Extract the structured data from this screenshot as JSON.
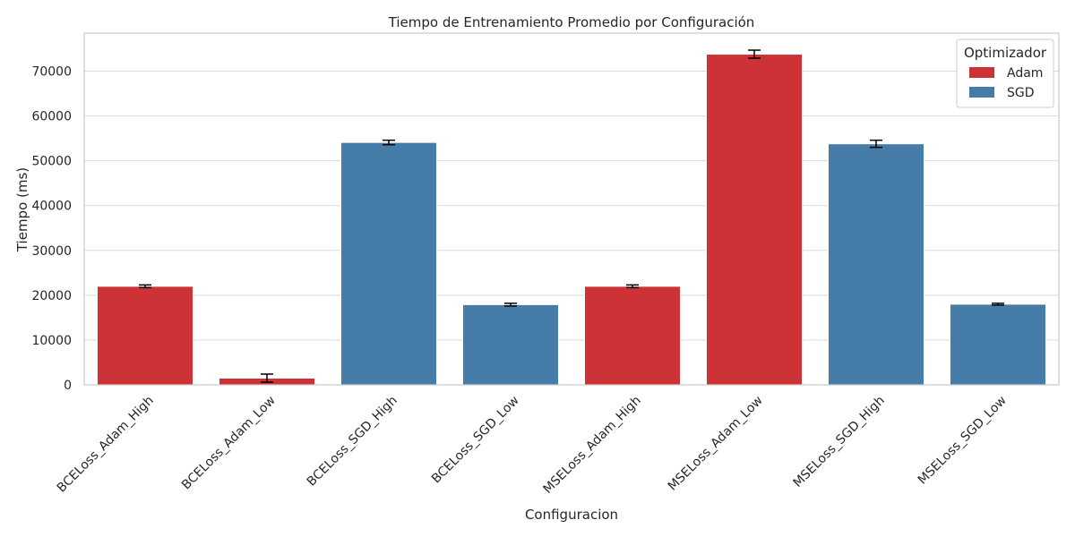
{
  "chart_data": {
    "type": "bar",
    "title": "Tiempo de Entrenamiento Promedio por Configuración",
    "xlabel": "Configuracion",
    "ylabel": "Tiempo (ms)",
    "ylim": [
      0,
      78500
    ],
    "yticks": [
      0,
      10000,
      20000,
      30000,
      40000,
      50000,
      60000,
      70000
    ],
    "grid": "horizontal",
    "legend": {
      "title": "Optimizador",
      "placement": "top-right",
      "entries": [
        {
          "name": "Adam",
          "color": "#cd3237"
        },
        {
          "name": "SGD",
          "color": "#467ca8"
        }
      ]
    },
    "categories": [
      "BCELoss_Adam_High",
      "BCELoss_Adam_Low",
      "BCELoss_SGD_High",
      "BCELoss_SGD_Low",
      "MSELoss_Adam_High",
      "MSELoss_Adam_Low",
      "MSELoss_SGD_High",
      "MSELoss_SGD_Low"
    ],
    "optimizer": [
      "Adam",
      "Adam",
      "SGD",
      "SGD",
      "Adam",
      "Adam",
      "SGD",
      "SGD"
    ],
    "values": [
      22000,
      1500,
      54100,
      17900,
      22000,
      73800,
      53800,
      18000
    ],
    "error": [
      300,
      900,
      500,
      300,
      300,
      900,
      800,
      200
    ]
  }
}
